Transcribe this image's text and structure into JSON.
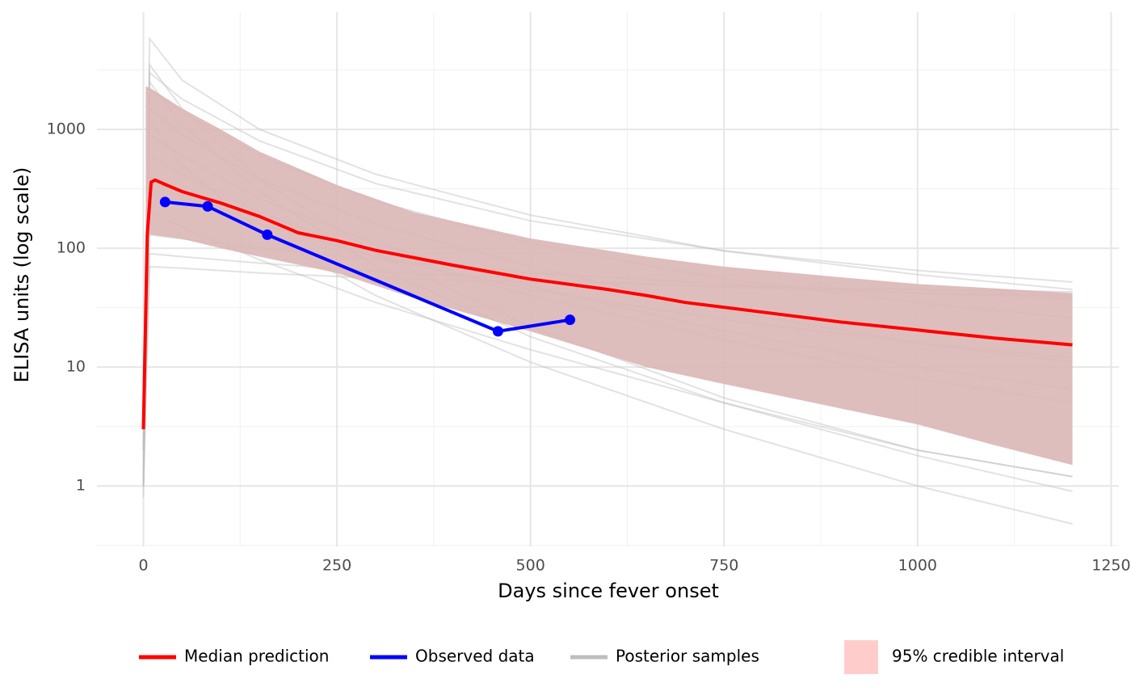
{
  "chart_data": {
    "type": "line",
    "x_label": "Days since fever onset",
    "y_label": "ELISA units (log scale)",
    "log_y": true,
    "grid": true,
    "legend": "bottom",
    "xlim": [
      -60,
      1260
    ],
    "ylim": [
      0.31,
      9700
    ],
    "xticks": [
      0,
      250,
      500,
      750,
      1000,
      1250
    ],
    "yticks": [
      1,
      10,
      100,
      1000
    ],
    "minor_xticks": [
      125,
      375,
      625,
      875,
      1125
    ],
    "minor_yticks": [
      0.316,
      3.16,
      31.6,
      316,
      3162
    ],
    "samples": {
      "name": "Posterior samples",
      "color": "#bebebe",
      "x": [
        0,
        8,
        50,
        150,
        300,
        500,
        750,
        1000,
        1200
      ],
      "lines": [
        [
          1,
          5800,
          2600,
          1000,
          420,
          190,
          95,
          60,
          45
        ],
        [
          2,
          3000,
          1800,
          800,
          350,
          170,
          95,
          65,
          52
        ],
        [
          1.5,
          2200,
          1400,
          600,
          250,
          110,
          55,
          35,
          26
        ],
        [
          2,
          1500,
          900,
          380,
          160,
          70,
          30,
          16,
          11
        ],
        [
          3,
          900,
          600,
          260,
          110,
          48,
          20,
          10,
          6.5
        ],
        [
          1,
          600,
          420,
          200,
          90,
          40,
          17,
          8,
          5
        ],
        [
          2,
          400,
          300,
          160,
          85,
          45,
          25,
          16,
          12
        ],
        [
          1,
          130,
          120,
          100,
          80,
          62,
          50,
          42,
          38
        ],
        [
          2,
          90,
          85,
          75,
          64,
          55,
          47,
          42,
          40
        ],
        [
          1,
          70,
          68,
          62,
          56,
          52,
          48,
          45,
          43
        ],
        [
          0.8,
          2500,
          1100,
          300,
          70,
          18,
          5,
          1.8,
          0.9
        ],
        [
          2,
          3500,
          1500,
          380,
          90,
          22,
          5.5,
          2,
          1.2
        ],
        [
          1,
          1200,
          500,
          140,
          40,
          11,
          3,
          1,
          0.48
        ],
        [
          2,
          200,
          150,
          80,
          35,
          14,
          5,
          2,
          1.2
        ]
      ]
    },
    "band": {
      "name": "95% credible interval",
      "color": "#ffcccc",
      "x": [
        3,
        10,
        50,
        100,
        150,
        250,
        350,
        500,
        650,
        750,
        900,
        1000,
        1100,
        1200
      ],
      "upper": [
        2300,
        2200,
        1500,
        1000,
        650,
        340,
        200,
        121,
        85,
        70,
        57,
        50,
        46,
        42
      ],
      "lower": [
        120,
        130,
        120,
        100,
        85,
        62,
        38,
        20,
        10,
        7.2,
        4.5,
        3.3,
        2.2,
        1.5
      ]
    },
    "series": [
      {
        "name": "Median prediction",
        "color": "#ff0000",
        "x": [
          0,
          5,
          10,
          15,
          30,
          50,
          100,
          150,
          200,
          250,
          300,
          400,
          500,
          600,
          650,
          700,
          800,
          900,
          1000,
          1100,
          1200
        ],
        "values": [
          3,
          130,
          360,
          375,
          340,
          300,
          240,
          185,
          135,
          116,
          96,
          72,
          55,
          45,
          40,
          35,
          29,
          24,
          20.5,
          17.5,
          15.4
        ]
      },
      {
        "name": "Observed data",
        "color": "#0000ff",
        "markers": true,
        "x": [
          28,
          83,
          160,
          458,
          551
        ],
        "values": [
          245,
          225,
          130,
          20,
          25
        ]
      }
    ]
  }
}
